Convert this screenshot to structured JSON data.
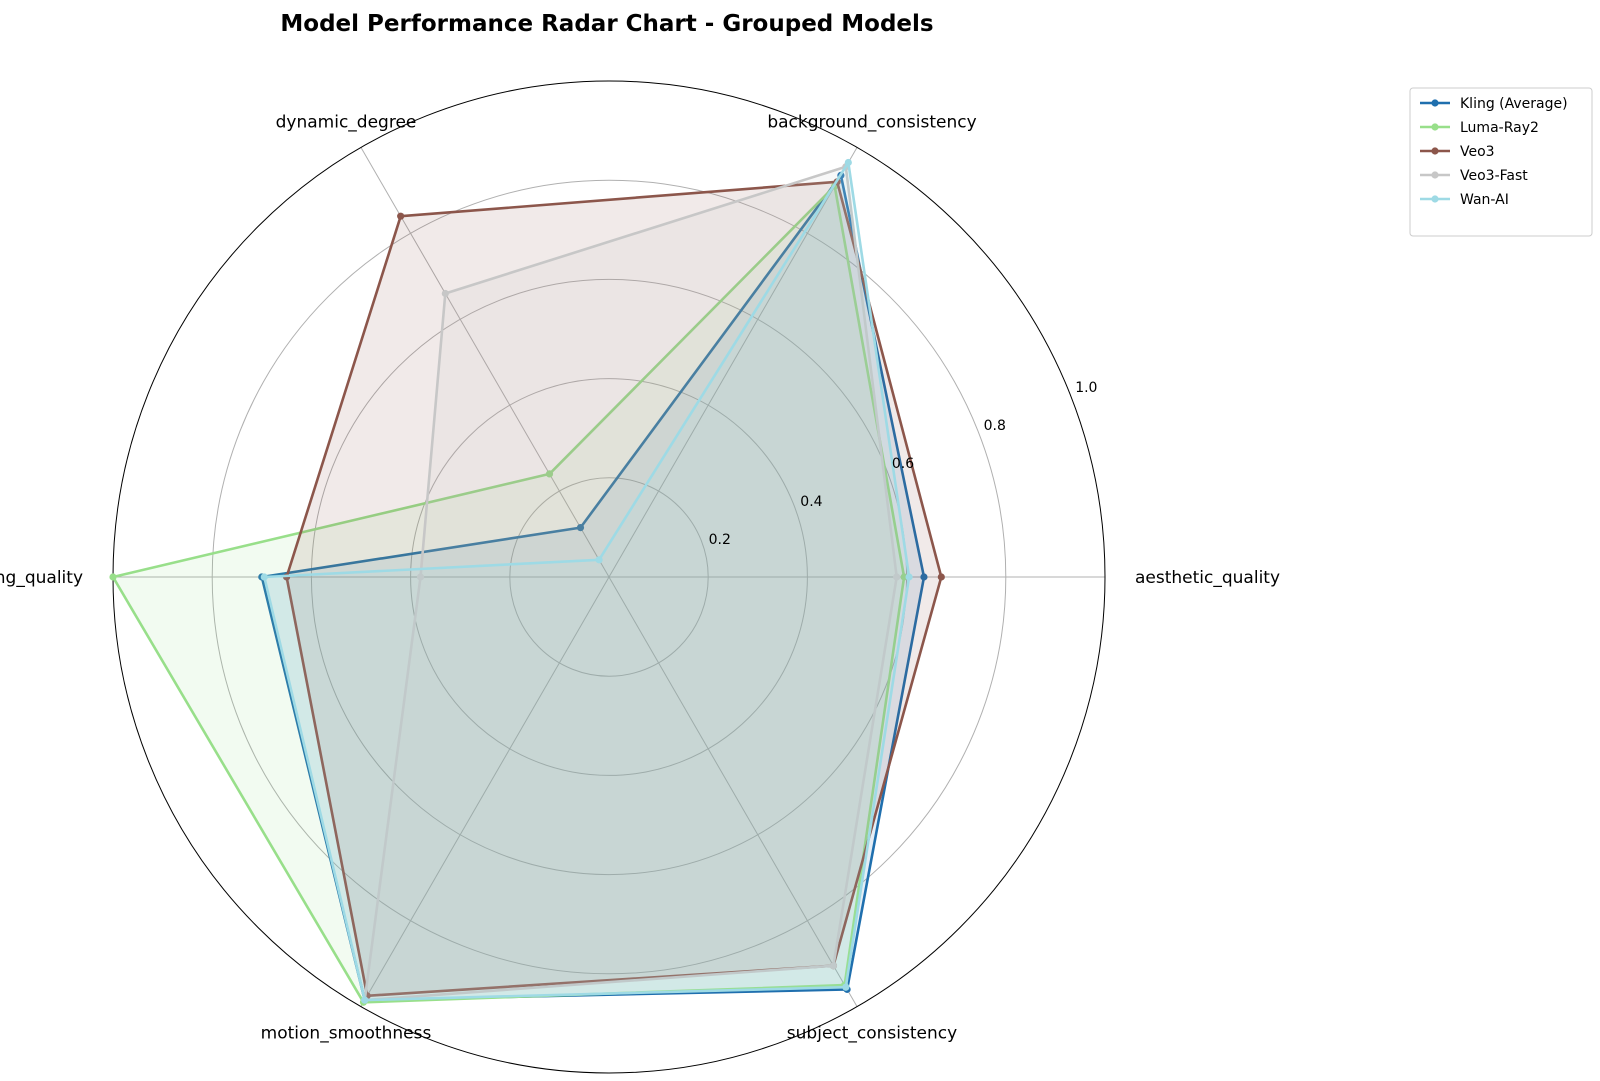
{
  "chart_data": {
    "type": "radar",
    "title": "Model Performance Radar Chart - Grouped Models",
    "axes": [
      "aesthetic_quality",
      "background_consistency",
      "dynamic_degree",
      "imaging_quality",
      "motion_smoothness",
      "subject_consistency"
    ],
    "rlim": [
      0,
      1.0
    ],
    "rticks": [
      0.2,
      0.4,
      0.6,
      0.8,
      1.0
    ],
    "rtick_labels": [
      "0.2",
      "0.4",
      "0.6",
      "0.8",
      "1.0"
    ],
    "grid": true,
    "legend_position": "top-right",
    "series": [
      {
        "name": "Kling (Average)",
        "color": "#1f6fae",
        "values": [
          0.635,
          0.935,
          0.115,
          0.7,
          0.985,
          0.96
        ]
      },
      {
        "name": "Luma-Ray2",
        "color": "#98df8a",
        "values": [
          0.595,
          0.91,
          0.24,
          1.0,
          0.99,
          0.95
        ]
      },
      {
        "name": "Veo3",
        "color": "#8c564b",
        "values": [
          0.67,
          0.92,
          0.84,
          0.65,
          0.975,
          0.905
        ]
      },
      {
        "name": "Veo3-Fast",
        "color": "#c7c7c7",
        "values": [
          0.58,
          0.955,
          0.66,
          0.38,
          0.985,
          0.905
        ]
      },
      {
        "name": "Wan-AI",
        "color": "#9edae5",
        "values": [
          0.605,
          0.965,
          0.04,
          0.695,
          0.985,
          0.955
        ]
      }
    ]
  }
}
